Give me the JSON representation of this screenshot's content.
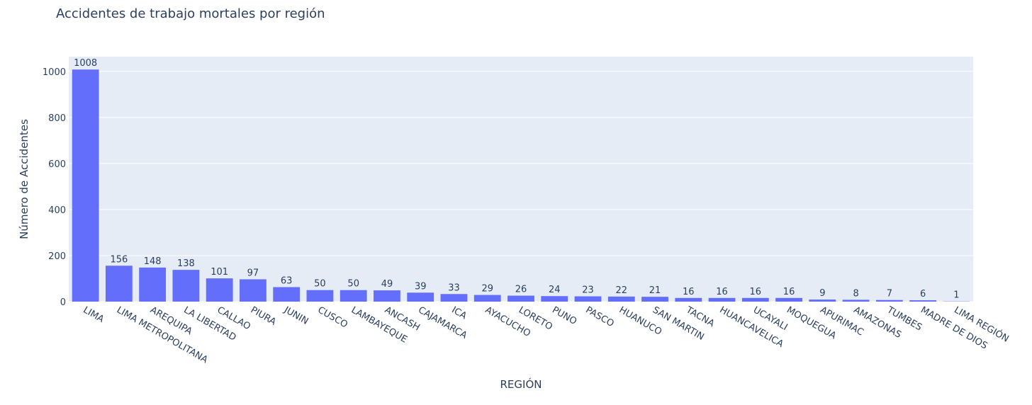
{
  "chart_data": {
    "type": "bar",
    "title": "Accidentes de trabajo mortales por región",
    "x_label": "REGIÓN",
    "y_label": "Número de Accidentes",
    "categories": [
      "LIMA",
      "LIMA METROPOLITANA",
      "AREQUIPA",
      "LA LIBERTAD",
      "CALLAO",
      "PIURA",
      "JUNIN",
      "CUSCO",
      "LAMBAYEQUE",
      "ANCASH",
      "CAJAMARCA",
      "ICA",
      "AYACUCHO",
      "LORETO",
      "PUNO",
      "PASCO",
      "HUANUCO",
      "SAN MARTIN",
      "TACNA",
      "HUANCAVELICA",
      "UCAYALI",
      "MOQUEGUA",
      "APURIMAC",
      "AMAZONAS",
      "TUMBES",
      "MADRE DE DIOS",
      "LIMA REGIÓN"
    ],
    "values": [
      1008,
      156,
      148,
      138,
      101,
      97,
      63,
      50,
      50,
      49,
      39,
      33,
      29,
      26,
      24,
      23,
      22,
      21,
      16,
      16,
      16,
      16,
      9,
      8,
      7,
      6,
      1
    ],
    "color": "#636efa",
    "ylim": [
      0,
      1064
    ],
    "yticks": [
      0,
      200,
      400,
      600,
      800,
      1000
    ],
    "grid": true
  }
}
